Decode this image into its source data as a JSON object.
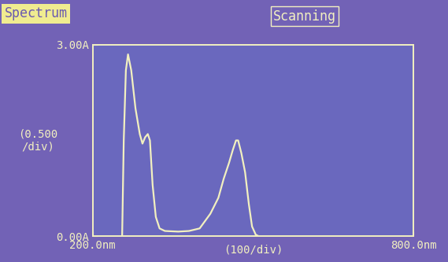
{
  "chart_data": {
    "type": "line",
    "title": "Spectrum",
    "status": "Scanning",
    "x_label": "(100/div)",
    "y_label": "(0.500\n/div)",
    "x": [
      255,
      258,
      262,
      266,
      272,
      280,
      288,
      293,
      298,
      303,
      307,
      312,
      318,
      325,
      335,
      360,
      380,
      400,
      420,
      435,
      445,
      455,
      462,
      468,
      472,
      478,
      485,
      492,
      498,
      505,
      510
    ],
    "values": [
      0.0,
      1.5,
      2.6,
      2.85,
      2.6,
      2.0,
      1.6,
      1.45,
      1.55,
      1.6,
      1.5,
      0.8,
      0.3,
      0.12,
      0.08,
      0.07,
      0.08,
      0.12,
      0.35,
      0.6,
      0.9,
      1.15,
      1.35,
      1.5,
      1.5,
      1.3,
      1.0,
      0.5,
      0.15,
      0.02,
      0.0
    ],
    "color": "#f2f0c0",
    "xlim": [
      200,
      800
    ],
    "xticks": [
      {
        "value": 200,
        "label": "200.0nm"
      },
      {
        "value": 800,
        "label": "800.0nm"
      }
    ],
    "ylim": [
      0,
      3
    ],
    "yticks": [
      {
        "value": 0,
        "label": "0.00A"
      },
      {
        "value": 3,
        "label": "3.00A"
      }
    ],
    "grid": false
  }
}
